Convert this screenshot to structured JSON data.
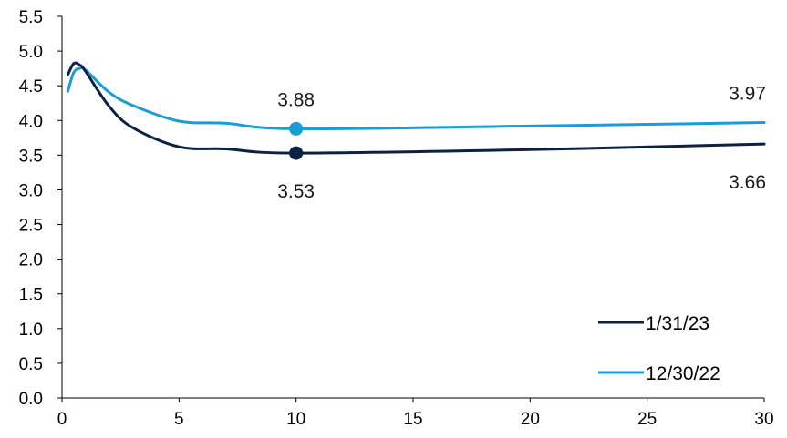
{
  "chart_data": {
    "type": "line",
    "title": "",
    "xlabel": "",
    "ylabel": "",
    "xlim": [
      0,
      30
    ],
    "ylim": [
      0,
      5.5
    ],
    "x_ticks": [
      0,
      5,
      10,
      15,
      20,
      25,
      30
    ],
    "x_tick_labels": [
      "0",
      "5",
      "10",
      "15",
      "20",
      "25",
      "30"
    ],
    "y_ticks": [
      0,
      0.5,
      1,
      1.5,
      2,
      2.5,
      3,
      3.5,
      4,
      4.5,
      5,
      5.5
    ],
    "y_tick_labels": [
      "0.0",
      "0.5",
      "1.0",
      "1.5",
      "2.0",
      "2.5",
      "3.0",
      "3.5",
      "4.0",
      "4.5",
      "5.0",
      "5.5"
    ],
    "grid": false,
    "legend_position": "bottom-right",
    "series": [
      {
        "name": "1/31/23",
        "color": "#0b2244",
        "x": [
          0.25,
          0.5,
          0.75,
          1,
          2,
          3,
          5,
          7,
          10,
          20,
          30
        ],
        "y": [
          4.66,
          4.82,
          4.8,
          4.71,
          4.21,
          3.9,
          3.62,
          3.59,
          3.53,
          3.58,
          3.66
        ],
        "marker_x": 10,
        "marker_y": 3.53,
        "labels": [
          {
            "x": 10,
            "y": 3.53,
            "text": "3.53",
            "position": "below"
          },
          {
            "x": 30,
            "y": 3.66,
            "text": "3.66",
            "position": "below"
          }
        ]
      },
      {
        "name": "12/30/22",
        "color": "#199cd7",
        "x": [
          0.25,
          0.5,
          0.75,
          1,
          2,
          3,
          5,
          7,
          10,
          20,
          30
        ],
        "y": [
          4.42,
          4.69,
          4.75,
          4.73,
          4.41,
          4.22,
          3.99,
          3.96,
          3.88,
          3.92,
          3.97
        ],
        "marker_x": 10,
        "marker_y": 3.88,
        "labels": [
          {
            "x": 10,
            "y": 3.88,
            "text": "3.88",
            "position": "above"
          },
          {
            "x": 30,
            "y": 3.97,
            "text": "3.97",
            "position": "above"
          }
        ]
      }
    ]
  }
}
